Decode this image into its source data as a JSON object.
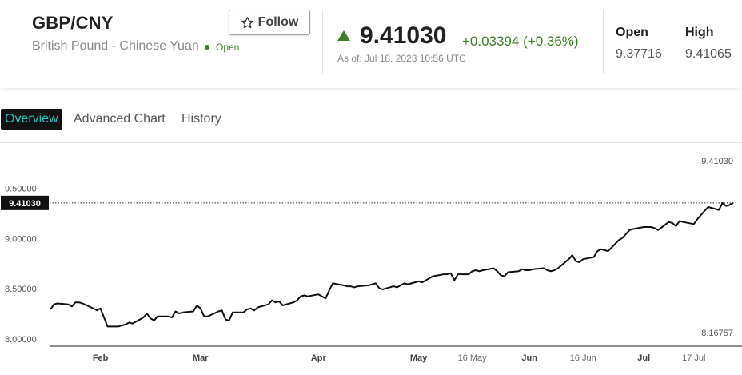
{
  "header": {
    "symbol": "GBP/CNY",
    "name": "British Pound - Chinese Yuan",
    "market_status": "Open",
    "follow_label": "Follow",
    "last_price": "9.41030",
    "change": "+0.03394 (+0.36%)",
    "as_of": "As of: Jul 18, 2023 10:56 UTC",
    "stats": [
      {
        "label": "Open",
        "value": "9.37716"
      },
      {
        "label": "High",
        "value": "9.41065"
      }
    ]
  },
  "tabs": [
    {
      "label": "Overview",
      "active": true
    },
    {
      "label": "Advanced Chart",
      "active": false
    },
    {
      "label": "History",
      "active": false
    }
  ],
  "colors": {
    "up": "#3d7d27",
    "tab_active_bg": "#121212",
    "tab_active_text": "#23c4be",
    "line": "#111111"
  },
  "chart_data": {
    "type": "line",
    "title": "",
    "xlabel": "",
    "ylabel": "",
    "ylim": [
      8.0,
      9.6
    ],
    "yticks": [
      "9.50000",
      "9.00000",
      "8.50000",
      "8.00000"
    ],
    "ytick_values": [
      9.5,
      9.0,
      8.5,
      8.0
    ],
    "current_value_label": "9.41030",
    "current_value": 9.4103,
    "range_high_label": "9.41030",
    "range_low_label": "8.16757",
    "xticks": [
      {
        "label": "Feb",
        "date": "2023-02-01",
        "major": true
      },
      {
        "label": "Mar",
        "date": "2023-03-01",
        "major": true
      },
      {
        "label": "Apr",
        "date": "2023-04-03",
        "major": true
      },
      {
        "label": "May",
        "date": "2023-05-01",
        "major": true
      },
      {
        "label": "16 May",
        "date": "2023-05-16",
        "major": false
      },
      {
        "label": "Jun",
        "date": "2023-06-01",
        "major": true
      },
      {
        "label": "16 Jun",
        "date": "2023-06-16",
        "major": false
      },
      {
        "label": "Jul",
        "date": "2023-07-03",
        "major": true
      },
      {
        "label": "17 Jul",
        "date": "2023-07-17",
        "major": false
      }
    ],
    "series": [
      {
        "values": [
          [
            "2023-01-18",
            8.35
          ],
          [
            "2023-01-19",
            8.4
          ],
          [
            "2023-01-20",
            8.41
          ],
          [
            "2023-01-23",
            8.4
          ],
          [
            "2023-01-24",
            8.38
          ],
          [
            "2023-01-25",
            8.42
          ],
          [
            "2023-01-26",
            8.42
          ],
          [
            "2023-01-27",
            8.41
          ],
          [
            "2023-01-30",
            8.36
          ],
          [
            "2023-01-31",
            8.34
          ],
          [
            "2023-02-01",
            8.36
          ],
          [
            "2023-02-02",
            8.27
          ],
          [
            "2023-02-03",
            8.18
          ],
          [
            "2023-02-06",
            8.18
          ],
          [
            "2023-02-07",
            8.19
          ],
          [
            "2023-02-08",
            8.2
          ],
          [
            "2023-02-09",
            8.22
          ],
          [
            "2023-02-10",
            8.21
          ],
          [
            "2023-02-13",
            8.27
          ],
          [
            "2023-02-14",
            8.31
          ],
          [
            "2023-02-15",
            8.26
          ],
          [
            "2023-02-16",
            8.24
          ],
          [
            "2023-02-17",
            8.28
          ],
          [
            "2023-02-20",
            8.28
          ],
          [
            "2023-02-21",
            8.27
          ],
          [
            "2023-02-22",
            8.33
          ],
          [
            "2023-02-23",
            8.31
          ],
          [
            "2023-02-24",
            8.32
          ],
          [
            "2023-02-27",
            8.33
          ],
          [
            "2023-02-28",
            8.39
          ],
          [
            "2023-03-01",
            8.36
          ],
          [
            "2023-03-02",
            8.28
          ],
          [
            "2023-03-03",
            8.28
          ],
          [
            "2023-03-06",
            8.33
          ],
          [
            "2023-03-07",
            8.34
          ],
          [
            "2023-03-08",
            8.25
          ],
          [
            "2023-03-09",
            8.24
          ],
          [
            "2023-03-10",
            8.32
          ],
          [
            "2023-03-13",
            8.32
          ],
          [
            "2023-03-14",
            8.35
          ],
          [
            "2023-03-15",
            8.36
          ],
          [
            "2023-03-16",
            8.34
          ],
          [
            "2023-03-17",
            8.37
          ],
          [
            "2023-03-20",
            8.4
          ],
          [
            "2023-03-21",
            8.44
          ],
          [
            "2023-03-22",
            8.42
          ],
          [
            "2023-03-23",
            8.43
          ],
          [
            "2023-03-24",
            8.39
          ],
          [
            "2023-03-27",
            8.42
          ],
          [
            "2023-03-28",
            8.44
          ],
          [
            "2023-03-29",
            8.48
          ],
          [
            "2023-03-30",
            8.49
          ],
          [
            "2023-03-31",
            8.48
          ],
          [
            "2023-04-03",
            8.5
          ],
          [
            "2023-04-04",
            8.48
          ],
          [
            "2023-04-05",
            8.46
          ],
          [
            "2023-04-06",
            8.54
          ],
          [
            "2023-04-07",
            8.61
          ],
          [
            "2023-04-10",
            8.59
          ],
          [
            "2023-04-11",
            8.58
          ],
          [
            "2023-04-12",
            8.58
          ],
          [
            "2023-04-13",
            8.57
          ],
          [
            "2023-04-14",
            8.58
          ],
          [
            "2023-04-17",
            8.59
          ],
          [
            "2023-04-18",
            8.6
          ],
          [
            "2023-04-19",
            8.61
          ],
          [
            "2023-04-20",
            8.56
          ],
          [
            "2023-04-21",
            8.55
          ],
          [
            "2023-04-24",
            8.58
          ],
          [
            "2023-04-25",
            8.57
          ],
          [
            "2023-04-26",
            8.59
          ],
          [
            "2023-04-27",
            8.61
          ],
          [
            "2023-04-28",
            8.6
          ],
          [
            "2023-05-01",
            8.63
          ],
          [
            "2023-05-02",
            8.62
          ],
          [
            "2023-05-03",
            8.64
          ],
          [
            "2023-05-04",
            8.66
          ],
          [
            "2023-05-05",
            8.68
          ],
          [
            "2023-05-08",
            8.7
          ],
          [
            "2023-05-09",
            8.7
          ],
          [
            "2023-05-10",
            8.71
          ],
          [
            "2023-05-11",
            8.64
          ],
          [
            "2023-05-12",
            8.7
          ],
          [
            "2023-05-15",
            8.7
          ],
          [
            "2023-05-16",
            8.73
          ],
          [
            "2023-05-17",
            8.74
          ],
          [
            "2023-05-18",
            8.73
          ],
          [
            "2023-05-19",
            8.74
          ],
          [
            "2023-05-22",
            8.76
          ],
          [
            "2023-05-23",
            8.73
          ],
          [
            "2023-05-24",
            8.69
          ],
          [
            "2023-05-25",
            8.68
          ],
          [
            "2023-05-26",
            8.72
          ],
          [
            "2023-05-29",
            8.73
          ],
          [
            "2023-05-30",
            8.75
          ],
          [
            "2023-05-31",
            8.74
          ],
          [
            "2023-06-01",
            8.74
          ],
          [
            "2023-06-02",
            8.75
          ],
          [
            "2023-06-05",
            8.76
          ],
          [
            "2023-06-06",
            8.74
          ],
          [
            "2023-06-07",
            8.73
          ],
          [
            "2023-06-08",
            8.74
          ],
          [
            "2023-06-09",
            8.76
          ],
          [
            "2023-06-12",
            8.85
          ],
          [
            "2023-06-13",
            8.89
          ],
          [
            "2023-06-14",
            8.83
          ],
          [
            "2023-06-15",
            8.82
          ],
          [
            "2023-06-16",
            8.85
          ],
          [
            "2023-06-19",
            8.87
          ],
          [
            "2023-06-20",
            8.93
          ],
          [
            "2023-06-21",
            8.95
          ],
          [
            "2023-06-22",
            8.94
          ],
          [
            "2023-06-23",
            8.93
          ],
          [
            "2023-06-26",
            9.04
          ],
          [
            "2023-06-27",
            9.06
          ],
          [
            "2023-06-28",
            9.1
          ],
          [
            "2023-06-29",
            9.14
          ],
          [
            "2023-06-30",
            9.15
          ],
          [
            "2023-07-03",
            9.17
          ],
          [
            "2023-07-04",
            9.17
          ],
          [
            "2023-07-05",
            9.17
          ],
          [
            "2023-07-06",
            9.16
          ],
          [
            "2023-07-07",
            9.14
          ],
          [
            "2023-07-10",
            9.22
          ],
          [
            "2023-07-11",
            9.21
          ],
          [
            "2023-07-12",
            9.18
          ],
          [
            "2023-07-13",
            9.23
          ],
          [
            "2023-07-14",
            9.22
          ],
          [
            "2023-07-17",
            9.2
          ],
          [
            "2023-07-18",
            9.25
          ],
          [
            "2023-07-19",
            9.29
          ],
          [
            "2023-07-20",
            9.33
          ],
          [
            "2023-07-21",
            9.37
          ],
          [
            "2023-07-24",
            9.34
          ],
          [
            "2023-07-25",
            9.41
          ],
          [
            "2023-07-26",
            9.38
          ],
          [
            "2023-07-27",
            9.39
          ],
          [
            "2023-07-28",
            9.41
          ]
        ]
      }
    ],
    "grid": false,
    "legend": "none"
  }
}
